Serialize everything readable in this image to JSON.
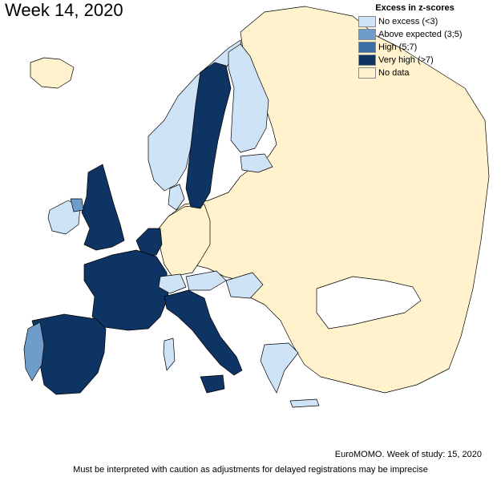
{
  "title": "Week 14, 2020",
  "legend": {
    "title": "Excess in z-scores",
    "items": [
      {
        "label": "No excess (<3)",
        "color": "#cfe3f7"
      },
      {
        "label": "Above expected (3;5)",
        "color": "#6f9dcb"
      },
      {
        "label": "High (5;7)",
        "color": "#3a6ea5"
      },
      {
        "label": "Very high (>7)",
        "color": "#0e3463"
      },
      {
        "label": "No data",
        "color": "#fff2cc"
      }
    ]
  },
  "footer": {
    "source": "EuroMOMO. Week of study: 15, 2020",
    "caveat": "Must be interpreted with caution as adjustments for delayed registrations may be imprecise"
  },
  "colors": {
    "no_data": "#fff2cc",
    "outside": "#ffffff",
    "border": "#000000"
  }
}
